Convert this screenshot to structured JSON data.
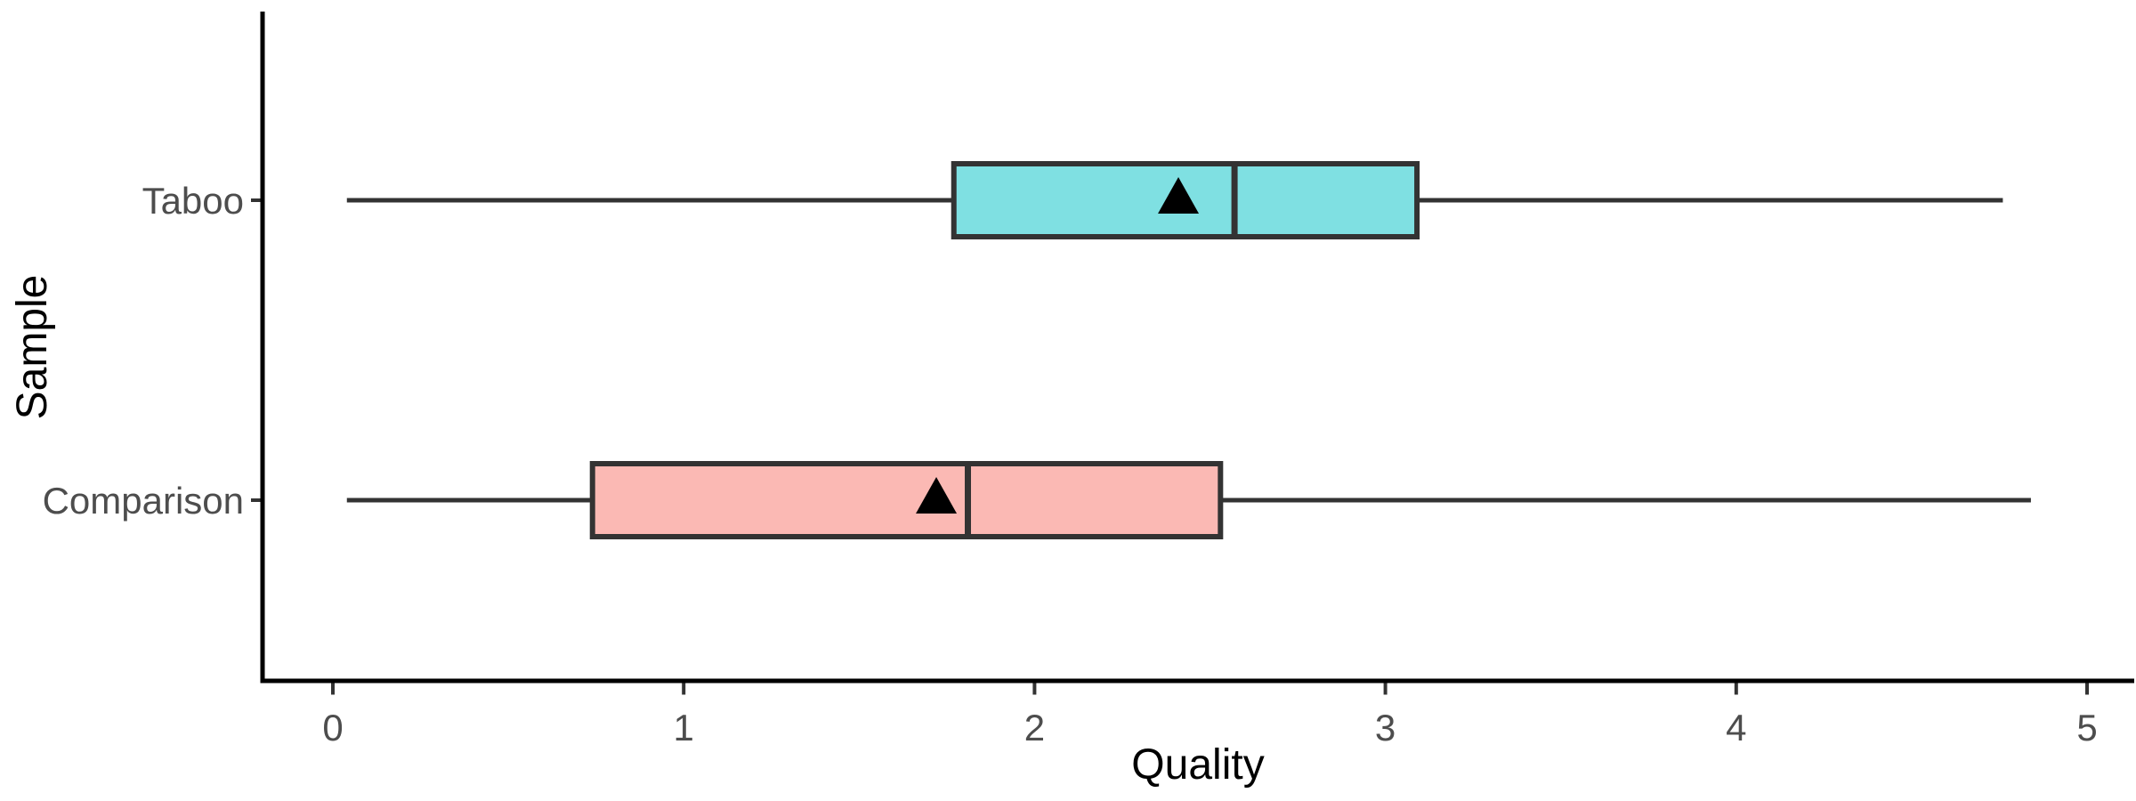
{
  "figure": {
    "background": "#FFFFFF"
  },
  "chart_data": {
    "type": "boxplot",
    "orientation": "horizontal",
    "title": "",
    "xlabel": "Quality",
    "ylabel": "Sample",
    "xlim": [
      0,
      5
    ],
    "x_ticks": [
      "0",
      "1",
      "2",
      "3",
      "4",
      "5"
    ],
    "grid": false,
    "legend": false,
    "categories": [
      "Taboo",
      "Comparison"
    ],
    "series": [
      {
        "name": "Taboo",
        "min": 0.04,
        "q1": 1.77,
        "median": 2.57,
        "q3": 3.09,
        "max": 4.76,
        "mean": 2.41,
        "fill": "#7FE0E2"
      },
      {
        "name": "Comparison",
        "min": 0.04,
        "q1": 0.74,
        "median": 1.81,
        "q3": 2.53,
        "max": 4.84,
        "mean": 1.72,
        "fill": "#FBB9B4"
      }
    ],
    "mean_marker": {
      "shape": "triangle-up",
      "color": "#000000"
    },
    "style": {
      "box_border_color": "#333333",
      "median_color": "#333333",
      "whisker_color": "#333333",
      "axis_line_color": "#000000",
      "tick_color": "#333333",
      "axis_text_color": "#4D4D4D",
      "axis_title_color": "#000000"
    }
  }
}
